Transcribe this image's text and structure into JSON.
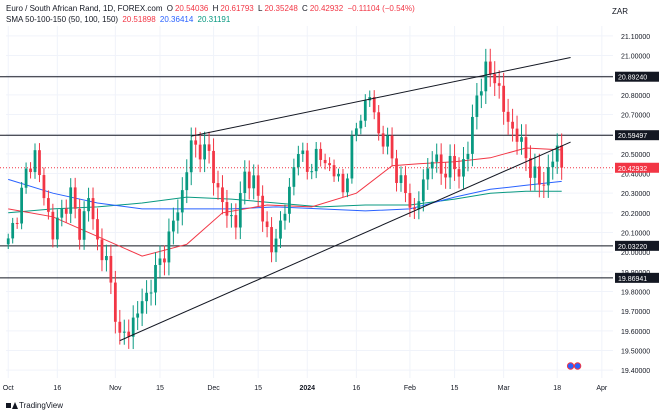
{
  "header": {
    "symbol": "Euro / South African Rand, 1D, FOREX.com",
    "open_label": "O",
    "open": "20.54036",
    "high_label": "H",
    "high": "20.61793",
    "low_label": "L",
    "low": "20.35248",
    "close_label": "C",
    "close": "20.42932",
    "change": "−0.11104 (−0.54%)",
    "sma_label": "SMA 50-100-150 (50, 100, 150)",
    "sma50": "20.51898",
    "sma100": "20.36414",
    "sma150": "20.31191"
  },
  "currency": "ZAR",
  "branding": "TradingView",
  "colors": {
    "bull": "#089981",
    "bear": "#f23645",
    "sma50": "#f23645",
    "sma100": "#2962ff",
    "sma150": "#089981",
    "line": "#131722",
    "grid": "#f0f3fa"
  },
  "chart_data": {
    "type": "candlestick",
    "title": "Euro / South African Rand, 1D, FOREX.com",
    "ylim": [
      19.36,
      21.13
    ],
    "y_ticks": [
      "21.10000",
      "21.00000",
      "20.90000",
      "20.80000",
      "20.70000",
      "20.60000",
      "20.50000",
      "20.40000",
      "20.30000",
      "20.20000",
      "20.10000",
      "20.00000",
      "19.90000",
      "19.80000",
      "19.70000",
      "19.60000",
      "19.50000",
      "19.40000"
    ],
    "x_ticks": [
      {
        "label": "Oct",
        "i": 0
      },
      {
        "label": "16",
        "i": 11
      },
      {
        "label": "Nov",
        "i": 24
      },
      {
        "label": "15",
        "i": 34
      },
      {
        "label": "Dec",
        "i": 46
      },
      {
        "label": "15",
        "i": 56
      },
      {
        "label": "2024",
        "i": 67
      },
      {
        "label": "16",
        "i": 78
      },
      {
        "label": "Feb",
        "i": 90
      },
      {
        "label": "15",
        "i": 100
      },
      {
        "label": "Mar",
        "i": 111
      },
      {
        "label": "18",
        "i": 123
      },
      {
        "label": "Apr",
        "i": 133
      }
    ],
    "bar_count": 136,
    "last_index": 124,
    "horizontal_levels": [
      20.8924,
      20.59497,
      20.0322,
      19.86941
    ],
    "level_labels": [
      "20.89240",
      "20.59497",
      "20.03220",
      "19.86941"
    ],
    "current_price": 20.42932,
    "current_price_label": "20.42932",
    "trendlines": [
      {
        "from": [
          25,
          19.55
        ],
        "to": [
          126,
          20.56
        ]
      },
      {
        "from": [
          41,
          20.59
        ],
        "to": [
          126,
          20.99
        ]
      }
    ],
    "anchors": [
      [
        0,
        20.05
      ],
      [
        2,
        20.2
      ],
      [
        4,
        20.4
      ],
      [
        6,
        20.5
      ],
      [
        8,
        20.28
      ],
      [
        10,
        20.1
      ],
      [
        12,
        20.2
      ],
      [
        14,
        20.3
      ],
      [
        16,
        20.1
      ],
      [
        18,
        20.28
      ],
      [
        20,
        20.05
      ],
      [
        22,
        19.95
      ],
      [
        24,
        19.7
      ],
      [
        25,
        19.56
      ],
      [
        27,
        19.6
      ],
      [
        29,
        19.7
      ],
      [
        31,
        19.78
      ],
      [
        33,
        19.9
      ],
      [
        35,
        20.0
      ],
      [
        37,
        20.15
      ],
      [
        39,
        20.3
      ],
      [
        41,
        20.55
      ],
      [
        43,
        20.52
      ],
      [
        45,
        20.5
      ],
      [
        47,
        20.3
      ],
      [
        49,
        20.2
      ],
      [
        51,
        20.15
      ],
      [
        53,
        20.4
      ],
      [
        55,
        20.35
      ],
      [
        57,
        20.2
      ],
      [
        59,
        20.0
      ],
      [
        61,
        20.15
      ],
      [
        63,
        20.3
      ],
      [
        65,
        20.55
      ],
      [
        67,
        20.4
      ],
      [
        69,
        20.5
      ],
      [
        71,
        20.45
      ],
      [
        73,
        20.42
      ],
      [
        75,
        20.3
      ],
      [
        77,
        20.55
      ],
      [
        79,
        20.7
      ],
      [
        81,
        20.8
      ],
      [
        83,
        20.6
      ],
      [
        85,
        20.55
      ],
      [
        87,
        20.4
      ],
      [
        89,
        20.3
      ],
      [
        91,
        20.2
      ],
      [
        93,
        20.35
      ],
      [
        95,
        20.5
      ],
      [
        97,
        20.4
      ],
      [
        99,
        20.45
      ],
      [
        101,
        20.4
      ],
      [
        103,
        20.52
      ],
      [
        105,
        20.8
      ],
      [
        107,
        20.92
      ],
      [
        109,
        20.9
      ],
      [
        111,
        20.72
      ],
      [
        113,
        20.62
      ],
      [
        115,
        20.55
      ],
      [
        117,
        20.42
      ],
      [
        119,
        20.35
      ],
      [
        121,
        20.4
      ],
      [
        123,
        20.54
      ],
      [
        124,
        20.43
      ]
    ],
    "sma50_points": [
      [
        0,
        20.22
      ],
      [
        10,
        20.18
      ],
      [
        20,
        20.08
      ],
      [
        30,
        19.98
      ],
      [
        40,
        20.04
      ],
      [
        48,
        20.2
      ],
      [
        58,
        20.24
      ],
      [
        68,
        20.23
      ],
      [
        78,
        20.3
      ],
      [
        86,
        20.44
      ],
      [
        92,
        20.45
      ],
      [
        100,
        20.46
      ],
      [
        108,
        20.48
      ],
      [
        116,
        20.53
      ],
      [
        124,
        20.52
      ]
    ],
    "sma100_points": [
      [
        0,
        20.37
      ],
      [
        10,
        20.3
      ],
      [
        20,
        20.25
      ],
      [
        30,
        20.22
      ],
      [
        40,
        20.22
      ],
      [
        50,
        20.22
      ],
      [
        60,
        20.23
      ],
      [
        70,
        20.22
      ],
      [
        80,
        20.21
      ],
      [
        90,
        20.22
      ],
      [
        100,
        20.28
      ],
      [
        108,
        20.32
      ],
      [
        116,
        20.34
      ],
      [
        124,
        20.36
      ]
    ],
    "sma150_points": [
      [
        0,
        20.2
      ],
      [
        10,
        20.22
      ],
      [
        20,
        20.23
      ],
      [
        30,
        20.25
      ],
      [
        40,
        20.28
      ],
      [
        50,
        20.27
      ],
      [
        60,
        20.25
      ],
      [
        70,
        20.23
      ],
      [
        80,
        20.24
      ],
      [
        90,
        20.24
      ],
      [
        100,
        20.27
      ],
      [
        108,
        20.3
      ],
      [
        116,
        20.31
      ],
      [
        124,
        20.31
      ]
    ]
  }
}
